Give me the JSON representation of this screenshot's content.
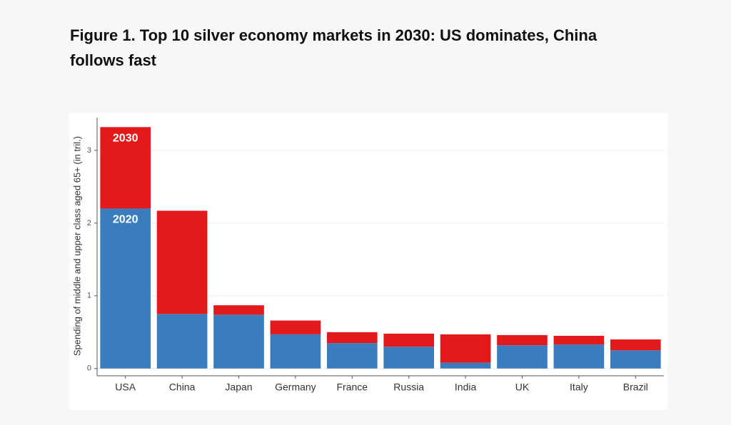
{
  "chart_data": {
    "type": "stacked_bar",
    "title": "Figure 1. Top 10 silver economy markets in 2030: US dominates, China follows fast",
    "y_label": "Spending of middle and upper class aged 65+ (in tril.)",
    "categories": [
      "USA",
      "China",
      "Japan",
      "Germany",
      "France",
      "Russia",
      "India",
      "UK",
      "Italy",
      "Brazil"
    ],
    "series": [
      {
        "name": "2020",
        "color": "#3a7dbf",
        "values": [
          2.2,
          0.75,
          0.74,
          0.47,
          0.35,
          0.3,
          0.08,
          0.32,
          0.33,
          0.25
        ]
      },
      {
        "name": "2030",
        "color": "#e31a1c",
        "values": [
          1.12,
          1.42,
          0.13,
          0.19,
          0.15,
          0.18,
          0.39,
          0.14,
          0.12,
          0.15
        ]
      }
    ],
    "ylim": [
      -0.1,
      3.45
    ],
    "yticks": [
      0,
      1,
      2,
      3
    ],
    "grid": true
  }
}
